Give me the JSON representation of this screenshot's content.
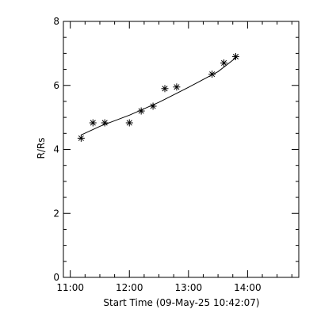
{
  "chart_data": {
    "type": "scatter",
    "title": "",
    "xlabel": "Start Time (09-May-25 10:42:07)",
    "ylabel": "R/Rs",
    "x_unit": "time of day",
    "xlim": [
      "10:53",
      "14:52"
    ],
    "ylim": [
      0,
      8
    ],
    "grid": false,
    "x_ticks": [
      {
        "value": "11:00",
        "label": "11:00"
      },
      {
        "value": "12:00",
        "label": "12:00"
      },
      {
        "value": "13:00",
        "label": "13:00"
      },
      {
        "value": "14:00",
        "label": "14:00"
      }
    ],
    "y_ticks": [
      {
        "value": 0,
        "label": "0"
      },
      {
        "value": 2,
        "label": "2"
      },
      {
        "value": 4,
        "label": "4"
      },
      {
        "value": 6,
        "label": "6"
      },
      {
        "value": 8,
        "label": "8"
      }
    ],
    "series": [
      {
        "marker": "asterisk",
        "points": [
          {
            "x": "11:11",
            "y": 4.35
          },
          {
            "x": "11:23",
            "y": 4.83
          },
          {
            "x": "11:35",
            "y": 4.83
          },
          {
            "x": "12:00",
            "y": 4.83
          },
          {
            "x": "12:12",
            "y": 5.2
          },
          {
            "x": "12:24",
            "y": 5.35
          },
          {
            "x": "12:36",
            "y": 5.9
          },
          {
            "x": "12:48",
            "y": 5.95
          },
          {
            "x": "13:24",
            "y": 6.35
          },
          {
            "x": "13:36",
            "y": 6.7
          },
          {
            "x": "13:48",
            "y": 6.9
          }
        ]
      }
    ],
    "fit_line": {
      "style": "solid",
      "points": [
        {
          "x": "11:11",
          "y": 4.45
        },
        {
          "x": "11:30",
          "y": 4.72
        },
        {
          "x": "12:00",
          "y": 5.07
        },
        {
          "x": "12:30",
          "y": 5.47
        },
        {
          "x": "13:00",
          "y": 5.94
        },
        {
          "x": "13:30",
          "y": 6.43
        },
        {
          "x": "13:48",
          "y": 6.86
        }
      ]
    }
  }
}
